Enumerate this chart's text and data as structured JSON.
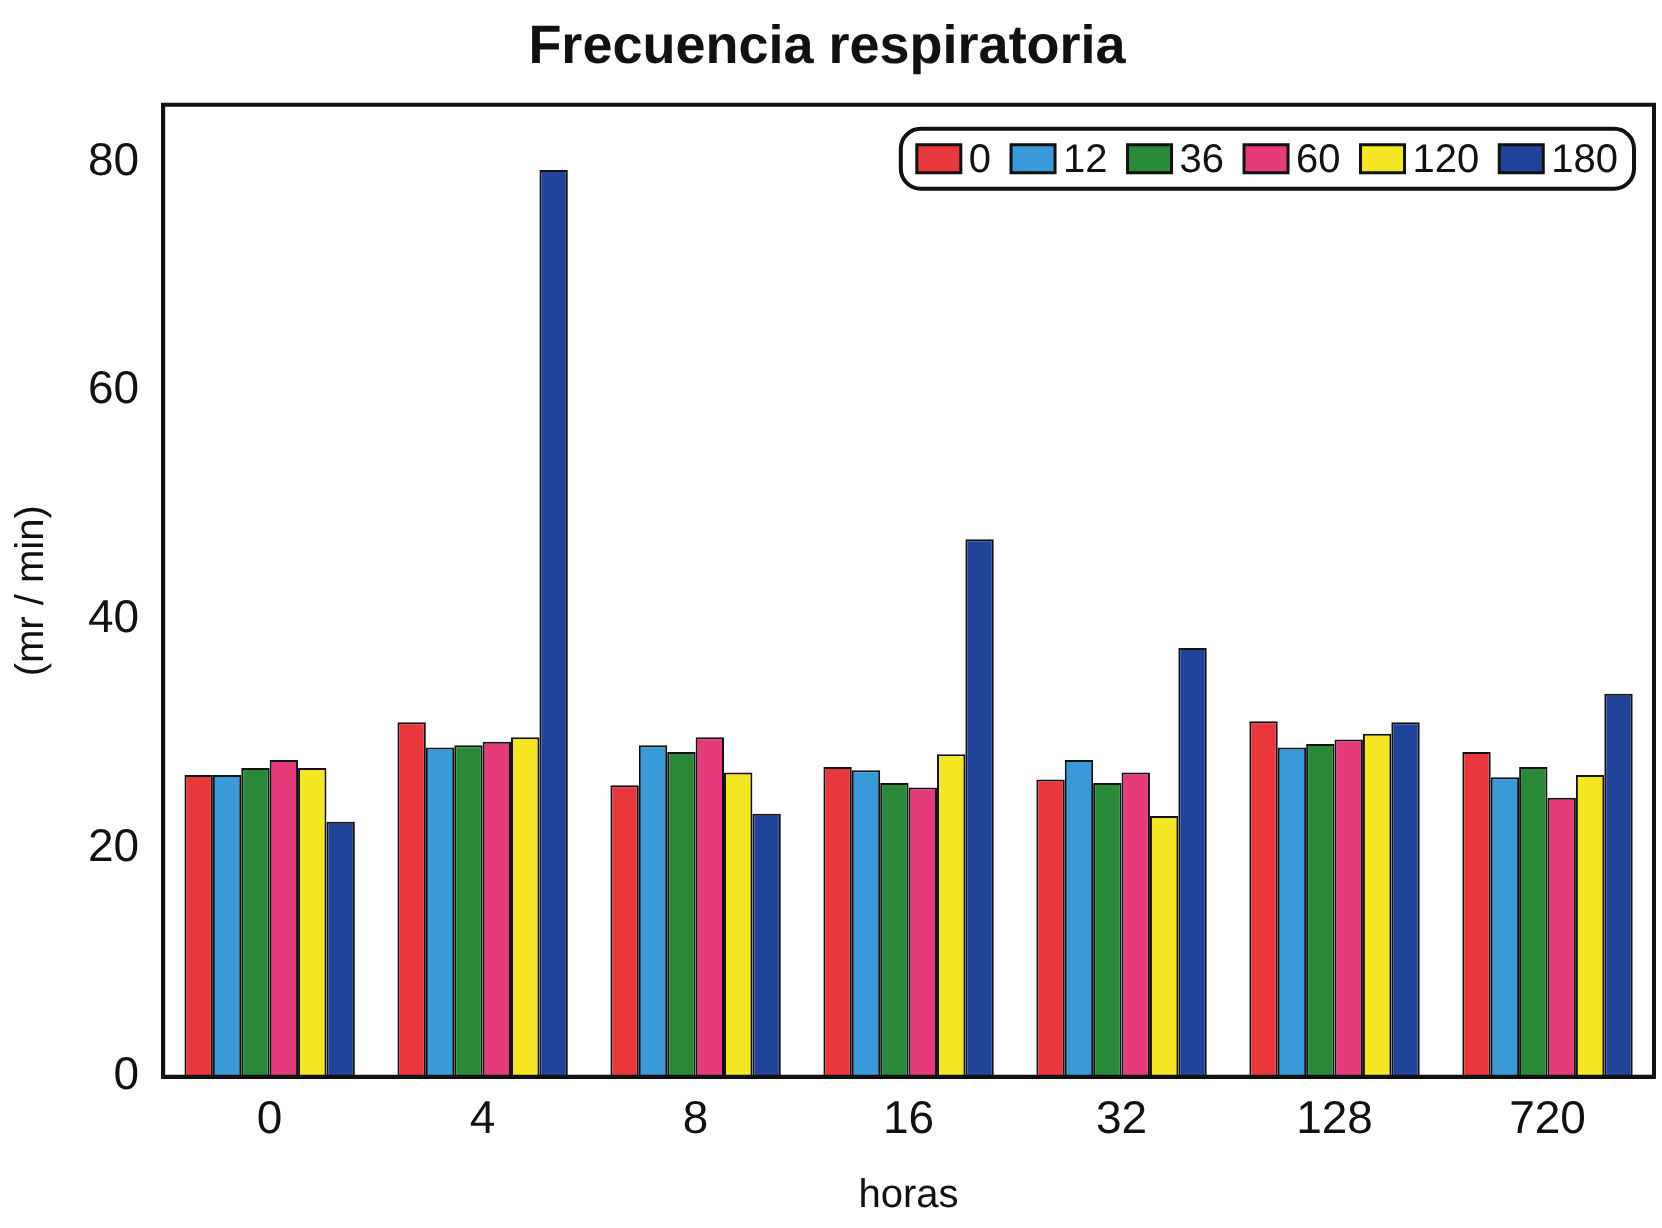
{
  "chart_data": {
    "type": "bar",
    "title": "Frecuencia respiratoria",
    "xlabel": "horas",
    "ylabel": "(mr / min)",
    "categories": [
      "0",
      "4",
      "8",
      "16",
      "32",
      "128",
      "720"
    ],
    "series": [
      {
        "name": "0",
        "color": "#e8383d",
        "values": [
          26.4,
          31,
          25.5,
          27.1,
          26,
          31.1,
          28.4
        ]
      },
      {
        "name": "12",
        "color": "#3a9ad9",
        "values": [
          26.4,
          28.8,
          29,
          26.8,
          27.7,
          28.8,
          26.2
        ]
      },
      {
        "name": "36",
        "color": "#2a8a3a",
        "values": [
          27,
          29,
          28.4,
          25.7,
          25.7,
          29.1,
          27.1
        ]
      },
      {
        "name": "60",
        "color": "#e63b7a",
        "values": [
          27.7,
          29.3,
          29.7,
          25.3,
          26.6,
          29.5,
          24.4
        ]
      },
      {
        "name": "120",
        "color": "#f5e623",
        "values": [
          27,
          29.7,
          26.6,
          28.2,
          22.8,
          30,
          26.4
        ]
      },
      {
        "name": "180",
        "color": "#22439a",
        "values": [
          22.3,
          79.3,
          23,
          47,
          37.5,
          31,
          33.5
        ]
      }
    ],
    "ylim": [
      0,
      85
    ],
    "yticks": [
      0,
      20,
      40,
      60,
      80
    ],
    "grid": false,
    "legend": "top right"
  }
}
